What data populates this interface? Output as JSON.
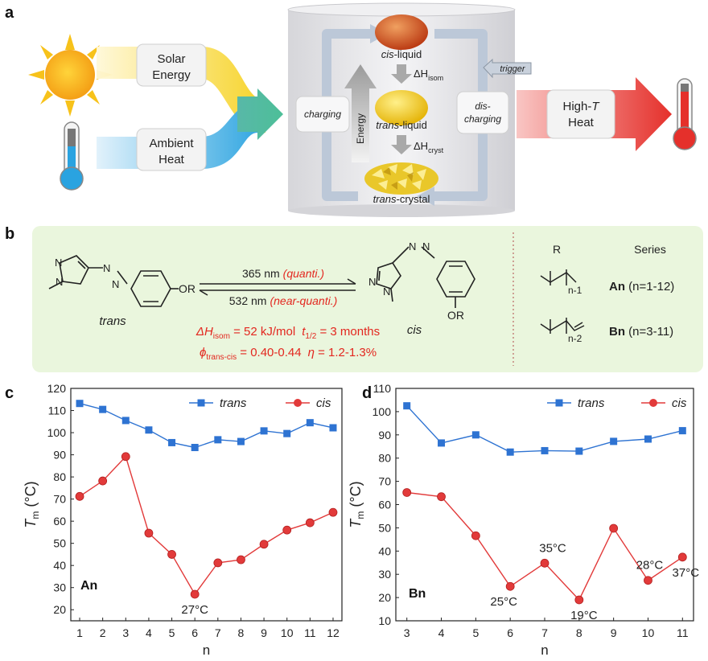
{
  "panel_a": {
    "label": "a",
    "solar_label_1": "Solar",
    "solar_label_2": "Energy",
    "ambient_label_1": "Ambient",
    "ambient_label_2": "Heat",
    "cis_liquid": {
      "prefix": "cis",
      "suffix": "-liquid"
    },
    "trans_liquid": {
      "prefix": "trans",
      "suffix": "-liquid"
    },
    "trans_crystal": {
      "prefix": "trans",
      "suffix": "-crystal"
    },
    "dh_isom": {
      "delta": "ΔH",
      "sub": "isom"
    },
    "dh_cryst": {
      "delta": "ΔH",
      "sub": "cryst"
    },
    "charging": "charging",
    "discharging_1": "dis-",
    "discharging_2": "charging",
    "energy": "Energy",
    "trigger": "trigger",
    "high_t_1": "High-",
    "high_t_T": "T",
    "high_t_2": "Heat",
    "colors": {
      "solar": "#f5d21c",
      "ambient": "#2aa3e0",
      "heat": "#e8382f",
      "cylinder": "#e9e9ec"
    }
  },
  "panel_b": {
    "label": "b",
    "forward": {
      "wavelength": "365 nm",
      "note": "(quanti.)"
    },
    "backward": {
      "wavelength": "532 nm",
      "note": "(near-quanti.)"
    },
    "trans": "trans",
    "cis": "cis",
    "sub_n": "N",
    "sub_or": "OR",
    "dh_text": {
      "delta": "ΔH",
      "sub": "isom",
      "value": " = 52 kJ/mol",
      "t_sym": "t",
      "t_sub": "1/2",
      "t_val": " = 3 months"
    },
    "phi_text": {
      "phi": "ϕ",
      "sub": "trans-cis",
      "value": " = 0.40-0.44",
      "eta": "η",
      "eta_val": " = 1.2-1.3%"
    },
    "r_header": "R",
    "series_header": "Series",
    "a_sub": "n-1",
    "b_sub": "n-2",
    "a_series": {
      "name": "An",
      "range": " (n=1-12)"
    },
    "b_series": {
      "name": "Bn",
      "range": " (n=3-11)"
    },
    "colors": {
      "background": "#eaf6dd",
      "highlight": "#e3271f"
    }
  },
  "chart_data": [
    {
      "panel": "c",
      "type": "line",
      "xlabel": "n",
      "ylabel": "T",
      "ylabel_sub": "m",
      "ylabel_unit": " (°C)",
      "series_label": "An",
      "x": [
        1,
        2,
        3,
        4,
        5,
        6,
        7,
        8,
        9,
        10,
        11,
        12
      ],
      "xlim": [
        1,
        12
      ],
      "ylim": [
        15,
        120
      ],
      "yticks": [
        20,
        30,
        40,
        50,
        60,
        70,
        80,
        90,
        100,
        110,
        120
      ],
      "series": [
        {
          "name": "trans",
          "marker": "square",
          "color": "#2e73d2",
          "values": [
            113.2,
            110.5,
            105.5,
            101.2,
            95.5,
            93.3,
            96.8,
            96.0,
            100.8,
            99.6,
            104.5,
            102.2
          ]
        },
        {
          "name": "cis",
          "marker": "circle",
          "color": "#e23a3a",
          "values": [
            71.2,
            78.2,
            89.2,
            54.6,
            45.0,
            27.0,
            41.2,
            42.6,
            49.6,
            56.0,
            59.3,
            64.0
          ]
        }
      ],
      "annotations": [
        {
          "text": "27°C",
          "x": 6,
          "y": 27.0
        }
      ]
    },
    {
      "panel": "d",
      "type": "line",
      "xlabel": "n",
      "ylabel": "T",
      "ylabel_sub": "m",
      "ylabel_unit": " (°C)",
      "series_label": "Bn",
      "x": [
        3,
        4,
        5,
        6,
        7,
        8,
        9,
        10,
        11
      ],
      "xlim": [
        3,
        11
      ],
      "ylim": [
        10,
        110
      ],
      "yticks": [
        10,
        20,
        30,
        40,
        50,
        60,
        70,
        80,
        90,
        100,
        110
      ],
      "series": [
        {
          "name": "trans",
          "marker": "square",
          "color": "#2e73d2",
          "values": [
            102.5,
            86.5,
            90.0,
            82.6,
            83.2,
            83.0,
            87.2,
            88.2,
            91.8
          ]
        },
        {
          "name": "cis",
          "marker": "circle",
          "color": "#e23a3a",
          "values": [
            65.2,
            63.4,
            46.6,
            24.8,
            34.8,
            19.0,
            49.8,
            27.4,
            37.4
          ]
        }
      ],
      "annotations": [
        {
          "text": "25°C",
          "x": 6,
          "y": 24.8
        },
        {
          "text": "35°C",
          "x": 7,
          "y": 34.8
        },
        {
          "text": "19°C",
          "x": 8,
          "y": 19.0
        },
        {
          "text": "28°C",
          "x": 10,
          "y": 27.4
        },
        {
          "text": "37°C",
          "x": 11,
          "y": 37.4
        }
      ]
    }
  ]
}
